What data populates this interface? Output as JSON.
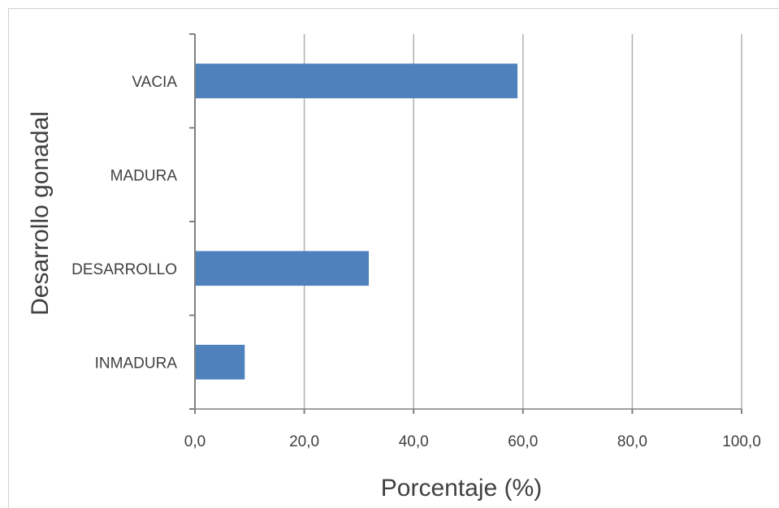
{
  "chart_data": {
    "type": "bar",
    "orientation": "horizontal",
    "title": "",
    "xlabel": "Porcentaje (%)",
    "ylabel": "Desarrollo gonadal",
    "categories": [
      "VACIA",
      "MADURA",
      "DESARROLLO",
      "INMADURA"
    ],
    "values": [
      59.0,
      0.0,
      31.8,
      9.1
    ],
    "xlim": [
      0,
      100
    ],
    "xticks": [
      "0,0",
      "20,0",
      "40,0",
      "60,0",
      "80,0",
      "100,0"
    ],
    "grid": "vertical",
    "legend": "none",
    "bar_color": "#4f81bd"
  }
}
